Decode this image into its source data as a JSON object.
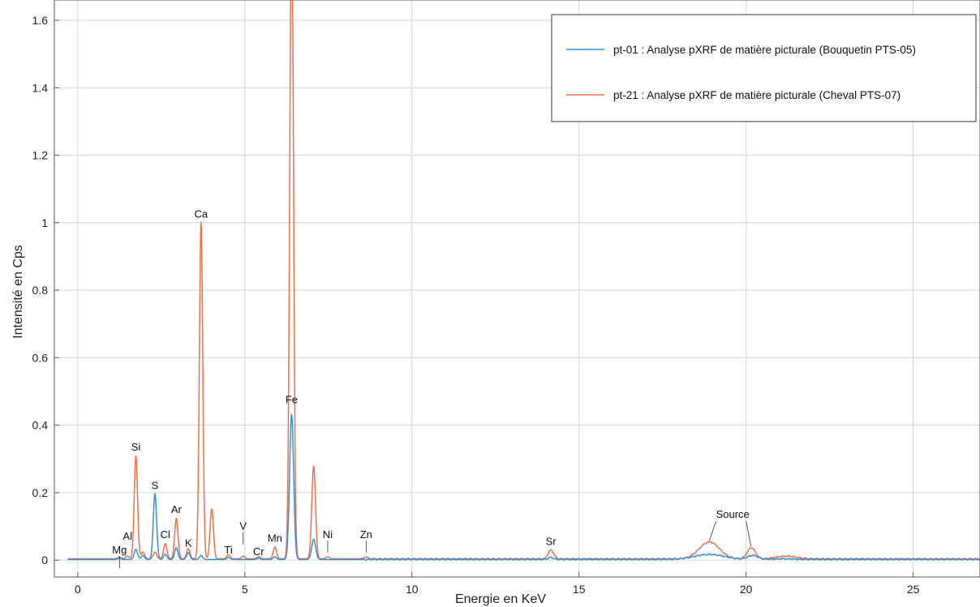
{
  "chart_data": {
    "type": "line",
    "xlabel": "Energie en KeV",
    "ylabel": "Intensité en Cps",
    "xlim": [
      -0.7,
      27.0
    ],
    "ylim": [
      -0.05,
      1.66
    ],
    "xticks": [
      0,
      5,
      10,
      15,
      20,
      25
    ],
    "yticks": [
      0,
      0.2,
      0.4,
      0.6,
      0.8,
      1,
      1.2,
      1.4,
      1.6
    ],
    "ytick_labels": [
      "0",
      "0.2",
      "0.4",
      "0.6",
      "0.8",
      "1",
      "1.2",
      "1.4",
      "1.6"
    ],
    "grid": true,
    "legend_position": "top-right",
    "baseline_noise": true,
    "series": [
      {
        "name": "pt-01 : Analyse pXRF de matière picturale (Bouquetin PTS-05)",
        "color": "#3a8fd0",
        "baseline": 0.002,
        "peaks": [
          {
            "e": 1.25,
            "h": 0.004,
            "w": 0.05
          },
          {
            "e": 1.74,
            "h": 0.03,
            "w": 0.05
          },
          {
            "e": 1.95,
            "h": 0.012,
            "w": 0.05
          },
          {
            "e": 2.31,
            "h": 0.195,
            "w": 0.05
          },
          {
            "e": 2.62,
            "h": 0.015,
            "w": 0.05
          },
          {
            "e": 2.95,
            "h": 0.035,
            "w": 0.05
          },
          {
            "e": 3.31,
            "h": 0.02,
            "w": 0.05
          },
          {
            "e": 3.69,
            "h": 0.012,
            "w": 0.05
          },
          {
            "e": 4.51,
            "h": 0.006,
            "w": 0.05
          },
          {
            "e": 5.41,
            "h": 0.004,
            "w": 0.05
          },
          {
            "e": 5.9,
            "h": 0.008,
            "w": 0.05
          },
          {
            "e": 6.4,
            "h": 0.43,
            "w": 0.06
          },
          {
            "e": 7.06,
            "h": 0.06,
            "w": 0.06
          },
          {
            "e": 14.16,
            "h": 0.006,
            "w": 0.08
          },
          {
            "e": 18.9,
            "h": 0.015,
            "w": 0.45
          },
          {
            "e": 20.2,
            "h": 0.012,
            "w": 0.15
          },
          {
            "e": 21.1,
            "h": 0.002,
            "w": 0.3
          }
        ]
      },
      {
        "name": "pt-21 : Analyse pXRF de matière picturale (Cheval PTS-07)",
        "color": "#e8734f",
        "baseline": 0.004,
        "peaks": [
          {
            "e": 1.25,
            "h": 0.005,
            "w": 0.05
          },
          {
            "e": 1.49,
            "h": 0.008,
            "w": 0.05
          },
          {
            "e": 1.74,
            "h": 0.305,
            "w": 0.05
          },
          {
            "e": 1.95,
            "h": 0.02,
            "w": 0.05
          },
          {
            "e": 2.31,
            "h": 0.02,
            "w": 0.05
          },
          {
            "e": 2.62,
            "h": 0.045,
            "w": 0.05
          },
          {
            "e": 2.95,
            "h": 0.12,
            "w": 0.05
          },
          {
            "e": 3.31,
            "h": 0.03,
            "w": 0.05
          },
          {
            "e": 3.69,
            "h": 0.998,
            "w": 0.05
          },
          {
            "e": 4.01,
            "h": 0.148,
            "w": 0.05
          },
          {
            "e": 4.51,
            "h": 0.012,
            "w": 0.05
          },
          {
            "e": 4.95,
            "h": 0.008,
            "w": 0.05
          },
          {
            "e": 5.41,
            "h": 0.006,
            "w": 0.05
          },
          {
            "e": 5.9,
            "h": 0.035,
            "w": 0.05
          },
          {
            "e": 6.4,
            "h": 1.95,
            "w": 0.055
          },
          {
            "e": 7.06,
            "h": 0.275,
            "w": 0.055
          },
          {
            "e": 7.48,
            "h": 0.006,
            "w": 0.05
          },
          {
            "e": 8.63,
            "h": 0.006,
            "w": 0.05
          },
          {
            "e": 14.16,
            "h": 0.026,
            "w": 0.08
          },
          {
            "e": 18.9,
            "h": 0.05,
            "w": 0.3
          },
          {
            "e": 20.16,
            "h": 0.033,
            "w": 0.12
          },
          {
            "e": 21.2,
            "h": 0.008,
            "w": 0.3
          }
        ]
      }
    ],
    "annotations": [
      {
        "label": "Mg",
        "e": 1.25,
        "y": 0.02,
        "ptr": true,
        "small": true
      },
      {
        "label": "Al",
        "e": 1.49,
        "y": 0.06,
        "ptr": false,
        "small": false
      },
      {
        "label": "Si",
        "e": 1.74,
        "y": 0.325,
        "ptr": false,
        "small": false
      },
      {
        "label": "S",
        "e": 2.31,
        "y": 0.21,
        "ptr": false,
        "small": false
      },
      {
        "label": "Cl",
        "e": 2.62,
        "y": 0.065,
        "ptr": false,
        "small": false
      },
      {
        "label": "Ar",
        "e": 2.95,
        "y": 0.14,
        "ptr": false,
        "small": false
      },
      {
        "label": "K",
        "e": 3.31,
        "y": 0.04,
        "ptr": false,
        "small": false
      },
      {
        "label": "Ca",
        "e": 3.69,
        "y": 1.015,
        "ptr": false,
        "small": false
      },
      {
        "label": "Ti",
        "e": 4.51,
        "y": 0.02,
        "ptr": false,
        "small": false
      },
      {
        "label": "V",
        "e": 4.95,
        "y": 0.09,
        "ptr": true,
        "small": false
      },
      {
        "label": "Cr",
        "e": 5.41,
        "y": 0.015,
        "ptr": false,
        "small": true
      },
      {
        "label": "Mn",
        "e": 5.9,
        "y": 0.055,
        "ptr": false,
        "small": false
      },
      {
        "label": "Fe",
        "e": 6.4,
        "y": 0.465,
        "ptr": false,
        "small": false
      },
      {
        "label": "Ni",
        "e": 7.48,
        "y": 0.065,
        "ptr": true,
        "small": false
      },
      {
        "label": "Zn",
        "e": 8.63,
        "y": 0.065,
        "ptr": true,
        "small": false
      },
      {
        "label": "Sr",
        "e": 14.16,
        "y": 0.045,
        "ptr": false,
        "small": false
      },
      {
        "label": "Source",
        "e": 19.6,
        "y": 0.125,
        "ptr": false,
        "small": false
      }
    ]
  }
}
